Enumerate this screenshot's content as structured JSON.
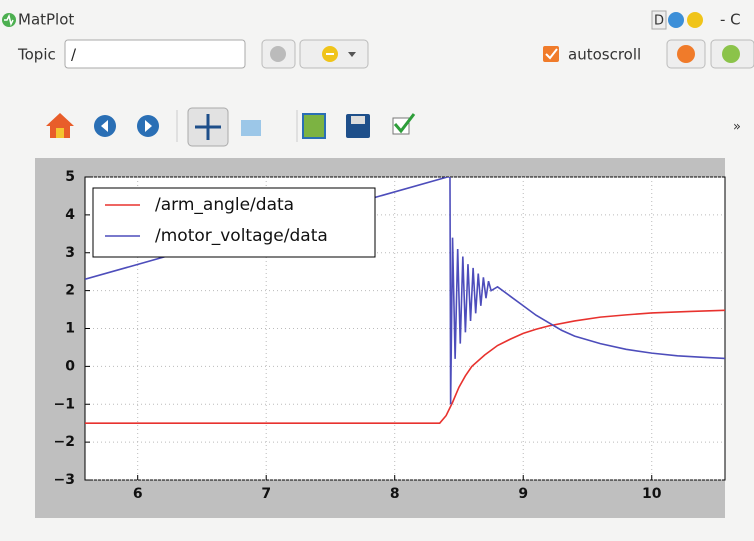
{
  "window": {
    "title": "MatPlot",
    "badge": "D",
    "right_fragment": "- C"
  },
  "topic_bar": {
    "label": "Topic",
    "input": "/",
    "autoscroll": "autoscroll"
  },
  "toolbar": {
    "overflow": "»"
  },
  "chart_data": {
    "type": "line",
    "series": [
      {
        "name": "/arm_angle/data",
        "color": "#e8322e",
        "x": [
          5.59,
          8.35,
          8.4,
          8.45,
          8.5,
          8.55,
          8.6,
          8.7,
          8.8,
          8.9,
          9.0,
          9.1,
          9.2,
          9.4,
          9.6,
          9.8,
          10.0,
          10.3,
          10.57
        ],
        "values": [
          -1.5,
          -1.5,
          -1.3,
          -0.95,
          -0.55,
          -0.25,
          0,
          0.3,
          0.55,
          0.72,
          0.87,
          0.98,
          1.07,
          1.2,
          1.3,
          1.36,
          1.41,
          1.45,
          1.48
        ]
      },
      {
        "name": "/motor_voltage/data",
        "color": "#4d4dbb",
        "x": [
          5.59,
          8.41,
          8.43,
          8.435,
          8.45,
          8.47,
          8.49,
          8.51,
          8.53,
          8.55,
          8.57,
          8.59,
          8.61,
          8.63,
          8.65,
          8.67,
          8.69,
          8.71,
          8.73,
          8.75,
          8.8,
          8.9,
          9.0,
          9.1,
          9.2,
          9.3,
          9.4,
          9.5,
          9.6,
          9.8,
          10.0,
          10.2,
          10.4,
          10.57
        ],
        "values": [
          2.3,
          5,
          5,
          -1.0,
          3.4,
          0.2,
          3.1,
          0.6,
          2.9,
          0.9,
          2.7,
          1.2,
          2.6,
          1.4,
          2.45,
          1.6,
          2.35,
          1.8,
          2.25,
          2.0,
          2.1,
          1.85,
          1.6,
          1.35,
          1.15,
          0.95,
          0.8,
          0.7,
          0.6,
          0.45,
          0.35,
          0.28,
          0.24,
          0.21
        ]
      }
    ],
    "xlim": [
      5.59,
      10.57
    ],
    "ylim": [
      -3,
      5
    ],
    "xticks": [
      6,
      7,
      8,
      9,
      10
    ],
    "yticks": [
      {
        "value": -3,
        "label": "−3"
      },
      {
        "value": -2,
        "label": "−2"
      },
      {
        "value": -1,
        "label": "−1"
      },
      0,
      1,
      2,
      3,
      4,
      5
    ],
    "grid": true,
    "legend": "upper left"
  }
}
